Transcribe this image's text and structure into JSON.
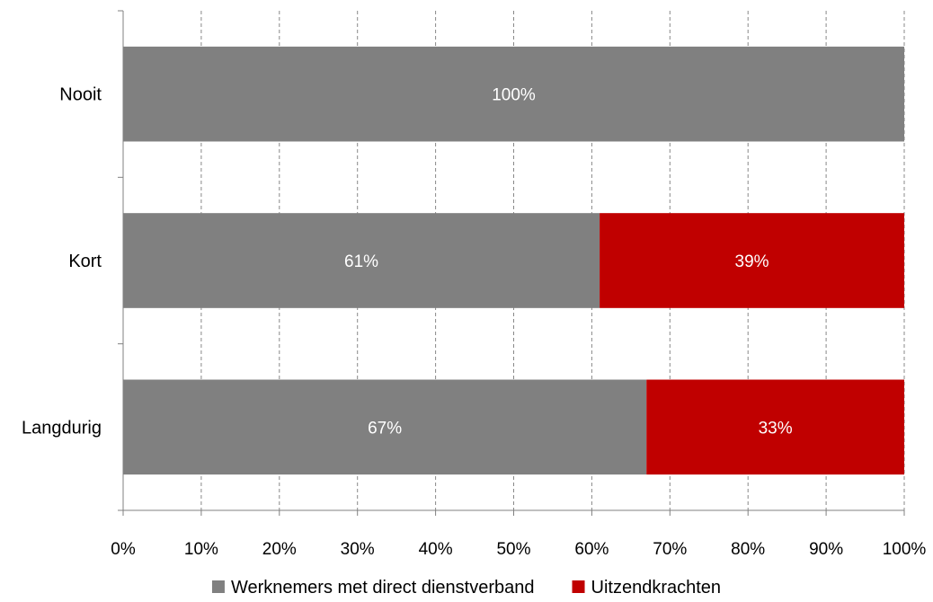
{
  "chart_data": {
    "type": "bar",
    "orientation": "horizontal",
    "stacked": true,
    "categories": [
      "Nooit",
      "Kort",
      "Langdurig"
    ],
    "series": [
      {
        "name": "Werknemers met direct dienstverband",
        "color": "#808080",
        "values": [
          100,
          61,
          67
        ],
        "labels": [
          "100%",
          "61%",
          "67%"
        ]
      },
      {
        "name": "Uitzendkrachten",
        "color": "#c00000",
        "values": [
          0,
          39,
          33
        ],
        "labels": [
          "",
          "39%",
          "33%"
        ]
      }
    ],
    "x_ticks": [
      "0%",
      "10%",
      "20%",
      "30%",
      "40%",
      "50%",
      "60%",
      "70%",
      "80%",
      "90%",
      "100%"
    ],
    "xlim": [
      0,
      100
    ],
    "grid": "vertical-dashed",
    "legend_position": "bottom"
  }
}
